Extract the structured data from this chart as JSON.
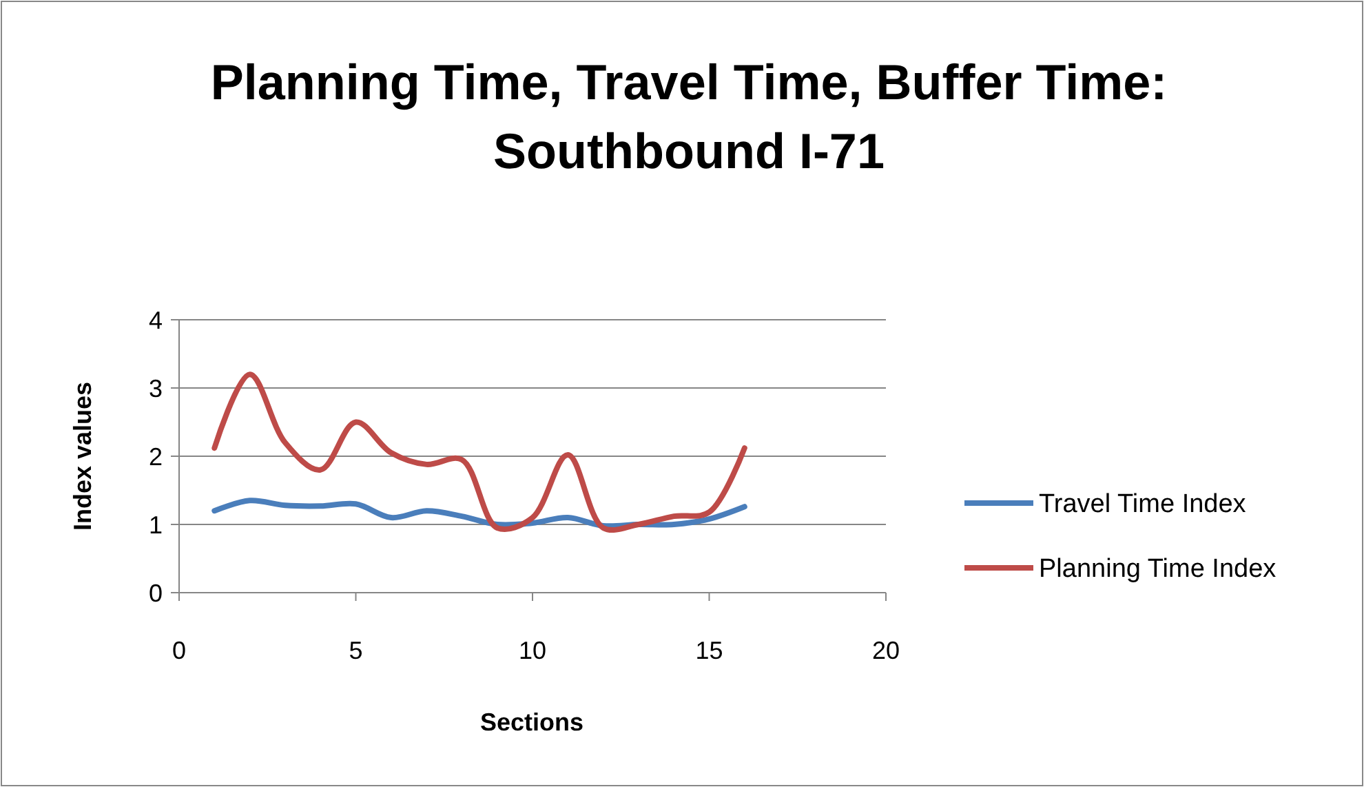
{
  "chart_data": {
    "type": "line",
    "title": "Planning Time, Travel Time, Buffer Time:\nSouthbound I-71",
    "xlabel": "Sections",
    "ylabel": "Index values",
    "x": [
      1,
      2,
      3,
      4,
      5,
      6,
      7,
      8,
      9,
      10,
      11,
      12,
      13,
      14,
      15,
      16
    ],
    "series": [
      {
        "name": "Travel Time Index",
        "color": "#4a7ebb",
        "values": [
          1.2,
          1.35,
          1.28,
          1.27,
          1.3,
          1.1,
          1.2,
          1.12,
          1.0,
          1.02,
          1.1,
          0.98,
          1.0,
          1.0,
          1.08,
          1.26
        ]
      },
      {
        "name": "Planning Time Index",
        "color": "#be4b48",
        "values": [
          2.12,
          3.2,
          2.2,
          1.8,
          2.5,
          2.05,
          1.88,
          1.95,
          0.95,
          1.1,
          2.02,
          0.95,
          1.0,
          1.12,
          1.18,
          2.12
        ]
      }
    ],
    "xlim": [
      0,
      20
    ],
    "xticks": [
      0,
      5,
      10,
      15,
      20
    ],
    "ylim": [
      0,
      4
    ],
    "yticks": [
      0,
      1,
      2,
      3,
      4
    ],
    "grid": "y",
    "legend": "right",
    "marker": "none",
    "line_style": "solid"
  }
}
